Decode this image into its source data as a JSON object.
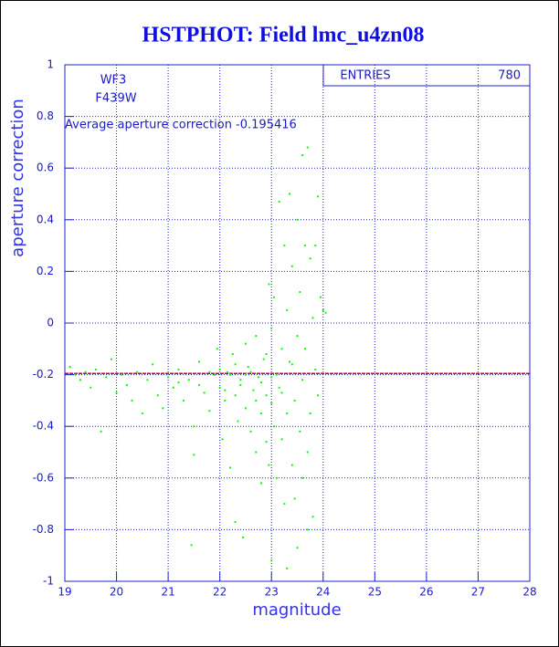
{
  "chart_data": {
    "type": "scatter",
    "title": "HSTPHOT: Field lmc_u4zn08",
    "x_label": "magnitude",
    "y_label": "aperture correction",
    "annotations": [
      "WF3",
      "F439W",
      "Average aperture correction -0.195416"
    ],
    "stats": {
      "label": "ENTRIES",
      "value": 780
    },
    "average": -0.195416,
    "xlim": [
      19,
      28
    ],
    "xticks": [
      19,
      20,
      21,
      22,
      23,
      24,
      25,
      26,
      27,
      28
    ],
    "ylim": [
      -1,
      1
    ],
    "yticks": [
      -1,
      -0.8,
      -0.6,
      -0.4,
      -0.2,
      0,
      0.2,
      0.4,
      0.6,
      0.8,
      1
    ],
    "grid": true,
    "color": "#00ff00",
    "average_color": "#cc0033",
    "x": [
      19.1,
      19.2,
      19.3,
      19.4,
      19.5,
      19.6,
      19.7,
      19.8,
      19.9,
      20.0,
      20.1,
      20.2,
      20.3,
      20.4,
      20.5,
      20.6,
      20.7,
      20.8,
      20.9,
      21.0,
      21.1,
      21.2,
      21.3,
      21.4,
      21.45,
      21.5,
      21.5,
      21.6,
      21.7,
      21.8,
      21.9,
      21.95,
      22.0,
      22.05,
      22.1,
      22.15,
      22.2,
      22.25,
      22.3,
      22.3,
      22.35,
      22.4,
      22.45,
      22.5,
      22.5,
      22.55,
      22.6,
      22.65,
      22.7,
      22.7,
      22.75,
      22.8,
      22.8,
      22.85,
      22.9,
      22.9,
      22.95,
      22.95,
      23.0,
      23.0,
      23.0,
      23.05,
      23.05,
      23.1,
      23.1,
      23.15,
      23.15,
      23.2,
      23.2,
      23.25,
      23.25,
      23.3,
      23.3,
      23.3,
      23.35,
      23.35,
      23.4,
      23.4,
      23.45,
      23.45,
      23.5,
      23.5,
      23.5,
      23.55,
      23.55,
      23.6,
      23.6,
      23.6,
      23.65,
      23.65,
      23.7,
      23.7,
      23.7,
      23.75,
      23.75,
      23.8,
      23.8,
      23.85,
      23.85,
      23.9,
      23.9,
      23.95,
      24.0,
      24.05,
      22.0,
      22.2,
      22.4,
      22.6,
      22.8,
      23.0,
      23.2,
      23.4,
      21.2,
      21.6,
      21.8,
      22.1,
      22.3,
      22.5,
      22.7,
      22.9
    ],
    "y": [
      -0.17,
      -0.2,
      -0.22,
      -0.19,
      -0.25,
      -0.18,
      -0.42,
      -0.21,
      -0.14,
      -0.27,
      -0.2,
      -0.24,
      -0.3,
      -0.19,
      -0.35,
      -0.22,
      -0.16,
      -0.28,
      -0.33,
      -0.21,
      -0.25,
      -0.18,
      -0.3,
      -0.22,
      -0.86,
      -0.51,
      -0.4,
      -0.15,
      -0.27,
      -0.34,
      -0.2,
      -0.1,
      -0.25,
      -0.45,
      -0.3,
      -0.19,
      -0.56,
      -0.12,
      -0.77,
      -0.28,
      -0.38,
      -0.22,
      -0.83,
      -0.08,
      -0.33,
      -0.17,
      -0.42,
      -0.26,
      -0.5,
      -0.05,
      -0.21,
      -0.35,
      -0.62,
      -0.14,
      -0.46,
      -0.28,
      0.15,
      -0.55,
      -0.02,
      -0.31,
      -0.92,
      0.1,
      -0.4,
      -0.2,
      -0.6,
      0.47,
      -0.25,
      -0.1,
      -0.45,
      0.3,
      -0.7,
      0.05,
      -0.35,
      -0.95,
      0.5,
      -0.15,
      -0.55,
      0.22,
      -0.68,
      -0.3,
      0.4,
      -0.05,
      -0.87,
      0.12,
      -0.42,
      0.65,
      -0.22,
      -0.6,
      0.3,
      -0.1,
      0.68,
      -0.5,
      -0.8,
      0.25,
      -0.35,
      0.02,
      -0.75,
      0.3,
      -0.18,
      0.49,
      -0.28,
      0.1,
      0.05,
      0.04,
      -0.18,
      -0.2,
      -0.24,
      -0.19,
      -0.23,
      -0.21,
      -0.27,
      -0.16,
      -0.23,
      -0.24,
      -0.19,
      -0.26,
      -0.16,
      -0.2,
      -0.3,
      -0.12
    ]
  }
}
